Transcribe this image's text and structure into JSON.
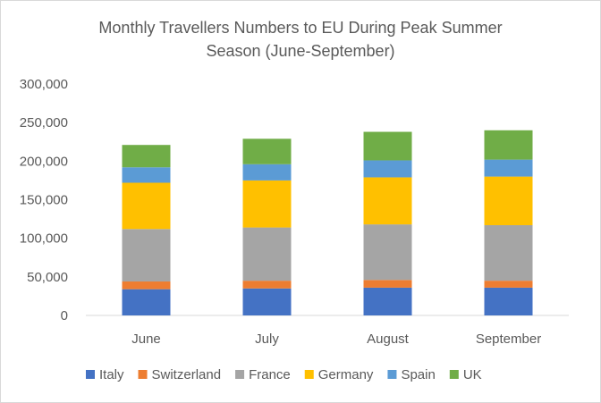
{
  "chart_data": {
    "type": "bar",
    "stacked": true,
    "title_line1": "Monthly Travellers Numbers to EU During Peak Summer",
    "title_line2": "Season (June-September)",
    "xlabel": "",
    "ylabel": "",
    "categories": [
      "June",
      "July",
      "August",
      "September"
    ],
    "ylim": [
      0,
      300000
    ],
    "yticks": [
      0,
      50000,
      100000,
      150000,
      200000,
      250000,
      300000
    ],
    "ytick_labels": [
      "0",
      "50,000",
      "100,000",
      "150,000",
      "200,000",
      "250,000",
      "300,000"
    ],
    "grid": false,
    "legend_position": "bottom",
    "series": [
      {
        "name": "Italy",
        "color": "#4472c4",
        "values": [
          34000,
          35000,
          36000,
          36000
        ]
      },
      {
        "name": "Switzerland",
        "color": "#ed7d31",
        "values": [
          10000,
          10000,
          10000,
          9000
        ]
      },
      {
        "name": "France",
        "color": "#a5a5a5",
        "values": [
          68000,
          69000,
          72000,
          72000
        ]
      },
      {
        "name": "Germany",
        "color": "#ffc000",
        "values": [
          60000,
          61000,
          61000,
          63000
        ]
      },
      {
        "name": "Spain",
        "color": "#5b9bd5",
        "values": [
          20000,
          21000,
          22000,
          22000
        ]
      },
      {
        "name": "UK",
        "color": "#70ad47",
        "values": [
          29000,
          33000,
          37000,
          38000
        ]
      }
    ]
  }
}
